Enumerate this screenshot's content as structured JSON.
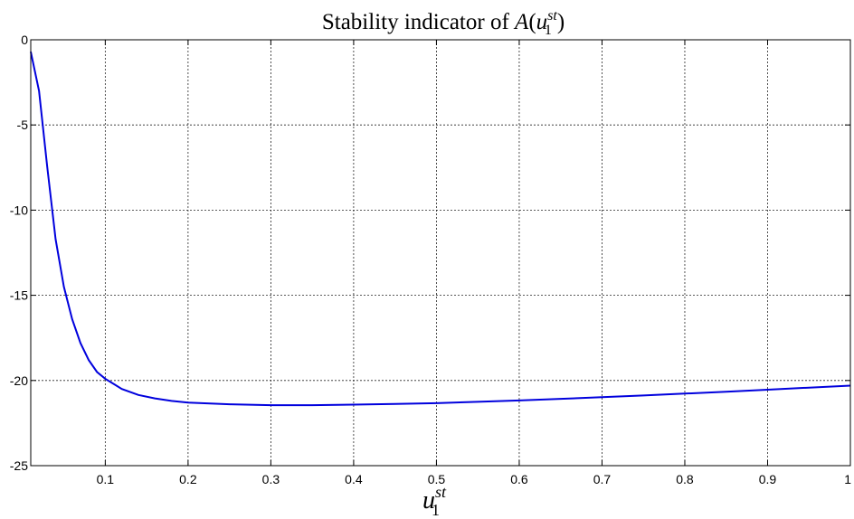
{
  "chart_data": {
    "type": "line",
    "title": {
      "prefix": "Stability indicator of ",
      "func": "A",
      "open": "(",
      "var": "u",
      "sup": "st",
      "sub": "1",
      "close": ")"
    },
    "xlabel": {
      "var": "u",
      "sup": "st",
      "sub": "1"
    },
    "ylabel": "",
    "xlim": [
      0.01,
      1
    ],
    "ylim": [
      -25,
      0
    ],
    "xticks": [
      0.1,
      0.2,
      0.3,
      0.4,
      0.5,
      0.6,
      0.7,
      0.8,
      0.9,
      1
    ],
    "xtick_labels": [
      "0.1",
      "0.2",
      "0.3",
      "0.4",
      "0.5",
      "0.6",
      "0.7",
      "0.8",
      "0.9",
      "1"
    ],
    "yticks": [
      0,
      -5,
      -10,
      -15,
      -20,
      -25
    ],
    "ytick_labels": [
      "0",
      "-5",
      "-10",
      "-15",
      "-20",
      "-25"
    ],
    "grid": true,
    "series": [
      {
        "color": "#0000dd",
        "x": [
          0.01,
          0.02,
          0.03,
          0.04,
          0.05,
          0.06,
          0.07,
          0.08,
          0.09,
          0.1,
          0.12,
          0.14,
          0.16,
          0.18,
          0.2,
          0.25,
          0.3,
          0.35,
          0.4,
          0.45,
          0.5,
          0.55,
          0.6,
          0.65,
          0.7,
          0.75,
          0.8,
          0.85,
          0.9,
          0.95,
          1.0
        ],
        "y": [
          -0.7,
          -3.0,
          -7.5,
          -11.7,
          -14.5,
          -16.4,
          -17.8,
          -18.8,
          -19.5,
          -19.9,
          -20.5,
          -20.85,
          -21.05,
          -21.2,
          -21.3,
          -21.4,
          -21.45,
          -21.45,
          -21.42,
          -21.38,
          -21.33,
          -21.25,
          -21.17,
          -21.08,
          -20.98,
          -20.88,
          -20.77,
          -20.66,
          -20.54,
          -20.42,
          -20.3
        ]
      }
    ]
  }
}
